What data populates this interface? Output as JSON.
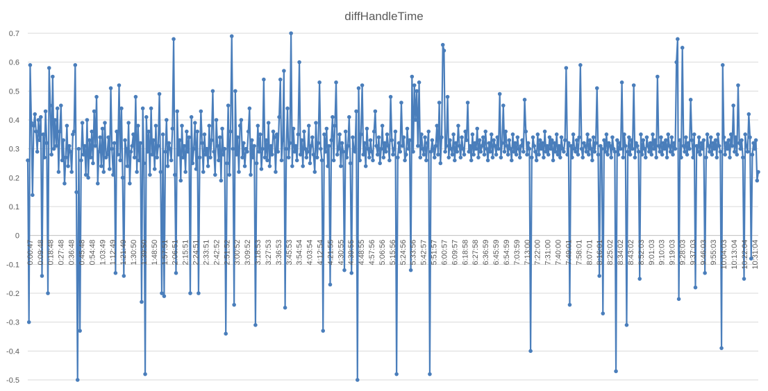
{
  "chart_data": {
    "type": "line",
    "title": "diffHandleTime",
    "xlabel": "",
    "ylabel": "",
    "ylim": [
      -0.5,
      0.7
    ],
    "yticks": [
      {
        "v": 0.7,
        "label": "0.7"
      },
      {
        "v": 0.6,
        "label": "0.6"
      },
      {
        "v": 0.5,
        "label": "0.5"
      },
      {
        "v": 0.4,
        "label": "0.4"
      },
      {
        "v": 0.3,
        "label": "0.3"
      },
      {
        "v": 0.2,
        "label": "0.2"
      },
      {
        "v": 0.1,
        "label": "0.1"
      },
      {
        "v": 0,
        "label": "0"
      },
      {
        "v": -0.1,
        "label": "-0.1"
      },
      {
        "v": -0.2,
        "label": "-0.2"
      },
      {
        "v": -0.3,
        "label": "-0.3"
      },
      {
        "v": -0.4,
        "label": "-0.4"
      },
      {
        "v": -0.5,
        "label": "-0.5"
      }
    ],
    "grid": true,
    "legend": "none",
    "x_tick_labels": [
      "0:00:47",
      "0:09:48",
      "0:18:48",
      "0:27:48",
      "0:36:48",
      "0:45:48",
      "0:54:48",
      "1:03:49",
      "1:12:49",
      "1:21:49",
      "1:30:50",
      "1:39:50",
      "1:48:50",
      "1:57:51",
      "2:06:51",
      "2:15:51",
      "2:24:51",
      "2:33:51",
      "2:42:52",
      "2:51:52",
      "3:00:52",
      "3:09:52",
      "3:18:53",
      "3:27:53",
      "3:36:53",
      "3:45:53",
      "3:54:54",
      "4:03:54",
      "4:12:54",
      "4:21:55",
      "4:30:55",
      "4:39:55",
      "4:48:55",
      "4:57:56",
      "5:06:56",
      "5:15:56",
      "5:24:56",
      "5:33:56",
      "5:42:57",
      "5:51:57",
      "6:00:57",
      "6:09:57",
      "6:18:58",
      "6:27:58",
      "6:36:59",
      "6:45:59",
      "6:54:59",
      "7:03:59",
      "7:13:00",
      "7:22:00",
      "7:31:00",
      "7:40:00",
      "7:49:01",
      "7:58:01",
      "8:07:01",
      "8:16:01",
      "8:25:02",
      "8:34:02",
      "8:43:02",
      "8:52:03",
      "9:01:03",
      "9:10:03",
      "9:19:03",
      "9:28:03",
      "9:37:03",
      "9:46:03",
      "9:55:03",
      "10:04:03",
      "10:13:04",
      "10:22:04",
      "10:31:04"
    ],
    "series": [
      {
        "name": "",
        "values": [
          0.26,
          -0.3,
          0.59,
          0.39,
          0.14,
          0.38,
          0.42,
          0.36,
          0.29,
          0.4,
          0.33,
          0.41,
          -0.14,
          0.35,
          0.27,
          0.43,
          0.32,
          -0.2,
          0.58,
          0.45,
          0.28,
          0.55,
          0.3,
          0.4,
          0.31,
          0.44,
          0.22,
          0.36,
          0.45,
          0.26,
          0.33,
          0.18,
          0.27,
          0.38,
          0.24,
          0.31,
          0.29,
          0.22,
          0.35,
          0.36,
          0.59,
          0.15,
          -0.5,
          0.3,
          -0.33,
          0.26,
          0.39,
          0.28,
          0.31,
          0.21,
          0.4,
          0.2,
          0.33,
          0.27,
          0.36,
          0.25,
          0.43,
          0.31,
          0.48,
          0.18,
          0.29,
          0.34,
          0.24,
          0.37,
          0.22,
          0.39,
          0.27,
          0.28,
          0.34,
          0.23,
          0.51,
          0.3,
          0.21,
          0.32,
          -0.13,
          0.36,
          0.28,
          0.52,
          0.26,
          0.44,
          0.2,
          -0.14,
          0.33,
          0.3,
          0.24,
          0.39,
          0.18,
          0.29,
          0.31,
          0.35,
          0.27,
          0.48,
          0.22,
          0.38,
          0.26,
          0.32,
          -0.23,
          0.44,
          0.25,
          -0.48,
          0.41,
          0.29,
          0.36,
          0.21,
          0.44,
          0.28,
          0.33,
          0.23,
          0.38,
          0.27,
          0.31,
          0.49,
          0.22,
          -0.2,
          0.35,
          -0.21,
          0.29,
          0.4,
          0.24,
          0.32,
          0.3,
          0.26,
          0.37,
          0.68,
          0.21,
          -0.13,
          0.43,
          0.28,
          0.33,
          0.19,
          0.38,
          0.27,
          0.31,
          0.22,
          0.36,
          0.29,
          0.34,
          -0.2,
          0.41,
          0.25,
          0.3,
          0.39,
          0.23,
          0.36,
          -0.2,
          0.27,
          0.43,
          0.32,
          0.22,
          0.35,
          0.28,
          0.3,
          0.24,
          0.38,
          0.27,
          0.33,
          0.5,
          0.29,
          0.21,
          0.4,
          0.31,
          0.26,
          0.34,
          0.19,
          0.37,
          0.28,
          0.3,
          -0.34,
          0.25,
          0.45,
          0.21,
          0.36,
          0.69,
          0.3,
          -0.24,
          0.5,
          0.28,
          0.34,
          0.22,
          0.38,
          0.4,
          0.27,
          0.32,
          0.24,
          0.3,
          0.29,
          0.36,
          0.44,
          0.21,
          0.33,
          0.27,
          0.31,
          -0.31,
          0.25,
          0.38,
          0.29,
          0.35,
          0.23,
          0.3,
          0.54,
          0.27,
          0.33,
          0.26,
          0.39,
          0.24,
          0.31,
          0.28,
          0.36,
          0.34,
          0.22,
          0.35,
          0.29,
          0.41,
          0.54,
          0.26,
          0.33,
          0.57,
          -0.25,
          0.3,
          0.44,
          0.27,
          0.32,
          0.7,
          0.24,
          0.37,
          0.29,
          0.31,
          0.26,
          0.35,
          0.6,
          0.28,
          0.33,
          0.24,
          0.36,
          0.3,
          0.27,
          0.29,
          0.38,
          0.25,
          0.31,
          0.34,
          0.28,
          0.22,
          0.39,
          0.27,
          0.32,
          0.53,
          0.3,
          0.26,
          -0.33,
          0.35,
          0.29,
          0.37,
          0.24,
          0.31,
          -0.17,
          0.33,
          0.41,
          0.26,
          0.38,
          0.53,
          0.28,
          0.3,
          0.35,
          0.24,
          0.32,
          0.29,
          -0.12,
          0.36,
          0.27,
          0.31,
          0.41,
          0.25,
          -0.13,
          0.34,
          0.3,
          0.29,
          0.43,
          -0.5,
          0.51,
          0.26,
          0.35,
          0.52,
          0.28,
          0.32,
          0.24,
          0.37,
          0.3,
          0.27,
          0.33,
          0.29,
          0.26,
          0.36,
          0.43,
          0.31,
          0.28,
          0.34,
          0.25,
          0.3,
          0.38,
          0.27,
          0.32,
          0.29,
          0.35,
          0.31,
          0.26,
          0.48,
          0.33,
          0.28,
          0.3,
          0.36,
          -0.48,
          0.27,
          0.32,
          0.29,
          0.46,
          0.31,
          0.34,
          0.26,
          0.28,
          0.37,
          0.3,
          0.33,
          -0.12,
          0.55,
          0.29,
          0.52,
          0.4,
          0.5,
          0.31,
          0.53,
          0.27,
          0.35,
          0.3,
          0.28,
          0.34,
          0.26,
          0.32,
          0.36,
          -0.48,
          0.29,
          0.33,
          0.3,
          0.27,
          0.31,
          0.38,
          0.28,
          0.46,
          0.25,
          0.34,
          0.66,
          0.64,
          0.29,
          0.31,
          0.48,
          0.27,
          0.33,
          0.3,
          0.28,
          0.35,
          0.26,
          0.32,
          0.29,
          0.38,
          0.31,
          0.27,
          0.34,
          0.3,
          0.28,
          0.36,
          0.33,
          0.46,
          0.29,
          0.31,
          0.26,
          0.35,
          0.28,
          0.32,
          0.3,
          0.37,
          0.27,
          0.33,
          0.29,
          0.31,
          0.34,
          0.28,
          0.36,
          0.3,
          0.26,
          0.32,
          0.29,
          0.35,
          0.27,
          0.33,
          0.31,
          0.28,
          0.34,
          0.3,
          0.49,
          0.27,
          0.32,
          0.45,
          0.29,
          0.36,
          0.31,
          0.28,
          0.33,
          0.3,
          0.26,
          0.35,
          0.29,
          0.32,
          0.28,
          0.34,
          0.3,
          0.27,
          0.31,
          0.33,
          0.29,
          0.47,
          0.36,
          0.28,
          0.32,
          0.3,
          -0.4,
          0.27,
          0.34,
          0.31,
          0.29,
          0.26,
          0.35,
          0.28,
          0.33,
          0.3,
          0.32,
          0.27,
          0.36,
          0.29,
          0.31,
          0.28,
          0.34,
          0.3,
          0.33,
          0.26,
          0.32,
          0.29,
          0.35,
          0.28,
          0.31,
          0.27,
          0.34,
          0.3,
          0.29,
          0.33,
          0.58,
          0.28,
          0.32,
          -0.24,
          0.31,
          0.27,
          0.35,
          0.3,
          0.29,
          0.33,
          0.28,
          0.34,
          0.59,
          0.3,
          0.27,
          0.32,
          0.31,
          0.29,
          0.35,
          0.28,
          0.33,
          0.3,
          0.26,
          0.34,
          0.29,
          0.32,
          0.51,
          0.28,
          -0.14,
          0.31,
          0.3,
          -0.27,
          0.33,
          0.29,
          0.35,
          0.28,
          0.32,
          0.31,
          0.27,
          0.34,
          0.3,
          0.29,
          -0.47,
          0.33,
          0.28,
          0.32,
          0.3,
          0.53,
          0.27,
          0.35,
          0.31,
          -0.31,
          0.29,
          0.34,
          0.28,
          0.33,
          0.3,
          0.52,
          0.27,
          0.32,
          0.31,
          0.29,
          -0.15,
          0.35,
          0.28,
          0.33,
          0.3,
          0.27,
          0.34,
          0.31,
          0.29,
          0.32,
          0.28,
          0.35,
          0.3,
          0.33,
          0.27,
          0.55,
          0.31,
          0.29,
          0.34,
          0.28,
          0.32,
          0.3,
          0.33,
          0.27,
          0.35,
          0.31,
          0.29,
          0.34,
          0.28,
          0.32,
          0.3,
          0.6,
          0.68,
          -0.22,
          0.33,
          0.27,
          0.65,
          0.31,
          0.29,
          0.34,
          0.28,
          0.32,
          0.3,
          0.47,
          0.33,
          0.27,
          0.35,
          -0.18,
          0.31,
          0.29,
          0.34,
          0.28,
          0.32,
          0.3,
          0.33,
          -0.13,
          0.27,
          0.35,
          0.31,
          0.29,
          0.34,
          0.28,
          0.32,
          0.3,
          0.33,
          0.27,
          0.35,
          0.31,
          0.29,
          -0.39,
          0.59,
          0.34,
          0.28,
          0.32,
          0.3,
          0.33,
          0.27,
          0.35,
          0.31,
          0.45,
          0.29,
          0.34,
          0.28,
          0.52,
          0.32,
          0.3,
          0.33,
          0.27,
          -0.15,
          0.35,
          0.31,
          0.29,
          0.42,
          0.34,
          -0.08,
          0.28,
          0.32,
          0.3,
          0.33,
          0.19,
          0.22
        ]
      }
    ]
  }
}
